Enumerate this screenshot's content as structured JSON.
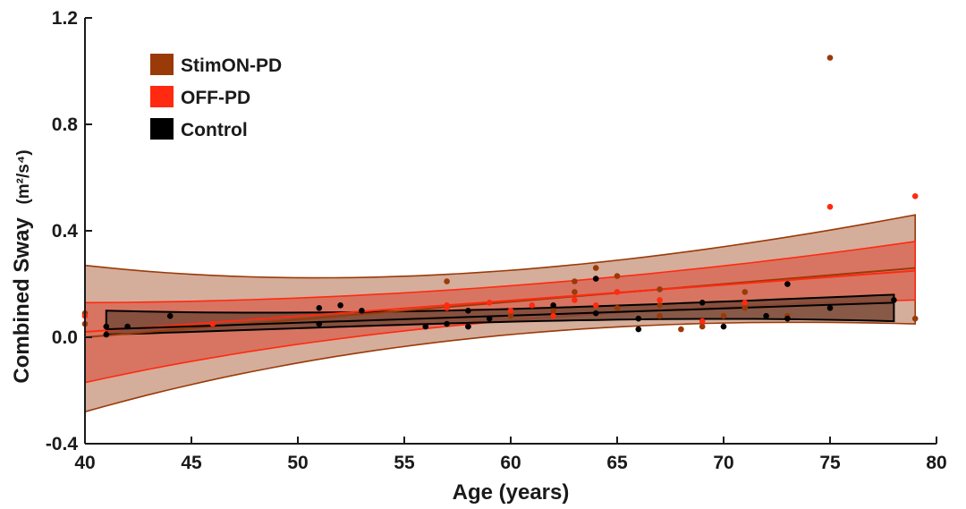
{
  "chart_data": {
    "type": "scatter",
    "title": "",
    "xlabel": "Age (years)",
    "ylabel": "Combined Sway",
    "ylabel_unit": "(m²/s⁴)",
    "xlim": [
      40,
      80
    ],
    "ylim": [
      -0.4,
      1.2
    ],
    "x_ticks": [
      40,
      45,
      50,
      55,
      60,
      65,
      70,
      75,
      80
    ],
    "y_ticks": [
      -0.4,
      0.0,
      0.4,
      0.8,
      1.2
    ],
    "x_tick_labels": [
      "40",
      "45",
      "50",
      "55",
      "60",
      "65",
      "70",
      "75",
      "80"
    ],
    "y_tick_labels": [
      "-0.4",
      "0.0",
      "0.4",
      "0.8",
      "1.2"
    ],
    "grid": false,
    "legend_position": "top-left",
    "series": [
      {
        "name": "StimON-PD",
        "color": "#9a3a08",
        "fit": {
          "x": [
            40,
            79
          ],
          "mean": [
            0.0,
            0.26
          ],
          "ci_upper": [
            0.27,
            0.46
          ],
          "ci_lower": [
            -0.28,
            0.05
          ],
          "band_color": "#c7917a"
        },
        "points": [
          [
            40,
            0.05
          ],
          [
            40,
            0.09
          ],
          [
            57,
            0.21
          ],
          [
            58,
            0.04
          ],
          [
            60,
            0.08
          ],
          [
            62,
            0.1
          ],
          [
            63,
            0.21
          ],
          [
            63,
            0.17
          ],
          [
            64,
            0.26
          ],
          [
            65,
            0.23
          ],
          [
            65,
            0.11
          ],
          [
            67,
            0.18
          ],
          [
            67,
            0.12
          ],
          [
            67,
            0.08
          ],
          [
            68,
            0.03
          ],
          [
            69,
            0.04
          ],
          [
            70,
            0.08
          ],
          [
            71,
            0.17
          ],
          [
            71,
            0.11
          ],
          [
            73,
            0.08
          ],
          [
            75,
            1.05
          ],
          [
            79,
            0.07
          ]
        ]
      },
      {
        "name": "OFF-PD",
        "color": "#ff2a10",
        "fit": {
          "x": [
            40,
            79
          ],
          "mean": [
            0.02,
            0.25
          ],
          "ci_upper": [
            0.13,
            0.36
          ],
          "ci_lower": [
            -0.17,
            0.14
          ],
          "band_color": "#d7634f"
        },
        "points": [
          [
            40,
            0.08
          ],
          [
            46,
            0.05
          ],
          [
            57,
            0.12
          ],
          [
            57,
            0.11
          ],
          [
            59,
            0.13
          ],
          [
            60,
            0.1
          ],
          [
            61,
            0.12
          ],
          [
            62,
            0.08
          ],
          [
            63,
            0.14
          ],
          [
            64,
            0.12
          ],
          [
            65,
            0.17
          ],
          [
            67,
            0.14
          ],
          [
            69,
            0.06
          ],
          [
            71,
            0.13
          ],
          [
            75,
            0.49
          ],
          [
            79,
            0.53
          ]
        ]
      },
      {
        "name": "Control",
        "color": "#000000",
        "fit": {
          "x": [
            41,
            78
          ],
          "mean": [
            0.03,
            0.13
          ],
          "ci_upper": [
            0.1,
            0.16
          ],
          "ci_lower": [
            0.01,
            0.06
          ],
          "band_color": "#7a4a38"
        },
        "points": [
          [
            41,
            0.04
          ],
          [
            41,
            0.01
          ],
          [
            42,
            0.04
          ],
          [
            44,
            0.08
          ],
          [
            51,
            0.11
          ],
          [
            51,
            0.05
          ],
          [
            52,
            0.12
          ],
          [
            53,
            0.1
          ],
          [
            56,
            0.04
          ],
          [
            57,
            0.05
          ],
          [
            58,
            0.1
          ],
          [
            58,
            0.04
          ],
          [
            59,
            0.07
          ],
          [
            62,
            0.12
          ],
          [
            64,
            0.22
          ],
          [
            64,
            0.09
          ],
          [
            66,
            0.07
          ],
          [
            66,
            0.03
          ],
          [
            69,
            0.13
          ],
          [
            70,
            0.04
          ],
          [
            72,
            0.08
          ],
          [
            73,
            0.2
          ],
          [
            73,
            0.07
          ],
          [
            75,
            0.11
          ],
          [
            78,
            0.14
          ]
        ]
      }
    ]
  }
}
